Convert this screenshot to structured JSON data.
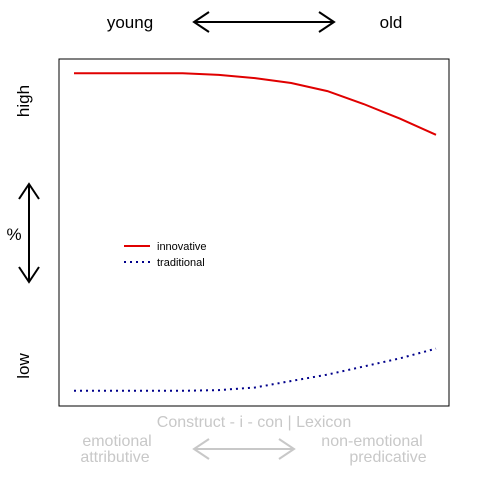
{
  "chart_data": {
    "type": "line",
    "top_axis": {
      "left_label": "young",
      "right_label": "old"
    },
    "y_axis": {
      "high_label": "high",
      "mid_label": "%",
      "low_label": "low"
    },
    "bottom_axis": {
      "title": "Construct - i - con | Lexicon",
      "left_label_line1": "emotional",
      "left_label_line2": "attributive",
      "right_label_line1": "non-emotional",
      "right_label_line2": "predicative"
    },
    "xlim": [
      0,
      1
    ],
    "ylim": [
      0,
      1
    ],
    "series": [
      {
        "name": "innovative",
        "color": "#e00000",
        "style": "solid",
        "x": [
          0,
          0.1,
          0.2,
          0.3,
          0.4,
          0.5,
          0.6,
          0.7,
          0.8,
          0.9,
          1.0
        ],
        "y": [
          0.99,
          0.99,
          0.99,
          0.99,
          0.985,
          0.975,
          0.96,
          0.935,
          0.895,
          0.85,
          0.8
        ]
      },
      {
        "name": "traditional",
        "color": "#00008b",
        "style": "dotted",
        "x": [
          0,
          0.1,
          0.2,
          0.3,
          0.4,
          0.5,
          0.6,
          0.7,
          0.8,
          0.9,
          1.0
        ],
        "y": [
          0.01,
          0.01,
          0.01,
          0.01,
          0.012,
          0.02,
          0.04,
          0.06,
          0.085,
          0.11,
          0.14
        ]
      }
    ],
    "legend_position": "center-left"
  }
}
